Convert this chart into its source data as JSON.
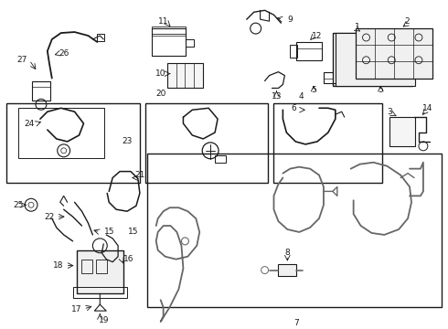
{
  "bg_color": "#ffffff",
  "line_color": "#1a1a1a",
  "gray_color": "#666666",
  "fig_width": 4.9,
  "fig_height": 3.6,
  "dpi": 100
}
